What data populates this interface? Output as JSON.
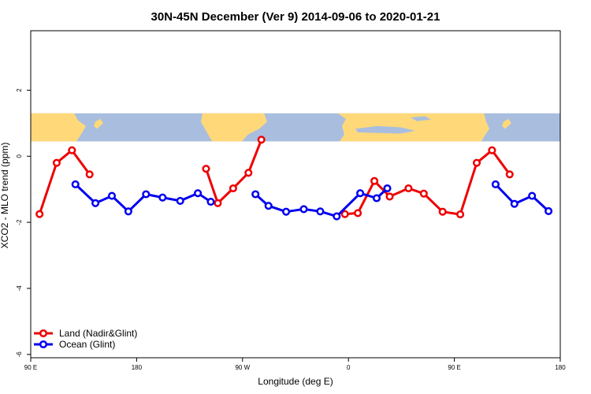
{
  "chart_data": {
    "type": "line",
    "title": "30N-45N December (Ver 9)   2014-09-06 to 2020-01-21",
    "xlabel": "Longitude (deg E)",
    "ylabel": "XCO2 - MLO trend (ppm)",
    "xlim": [
      90,
      540
    ],
    "ylim": [
      -6.1,
      3.8
    ],
    "x_ticks": [
      {
        "value": 90,
        "label": "90 E"
      },
      {
        "value": 180,
        "label": "180"
      },
      {
        "value": 270,
        "label": "90 W"
      },
      {
        "value": 360,
        "label": "0"
      },
      {
        "value": 450,
        "label": "90 E"
      },
      {
        "value": 540,
        "label": "180"
      }
    ],
    "y_ticks": [
      {
        "value": -6,
        "label": "-6"
      },
      {
        "value": -4,
        "label": "-4"
      },
      {
        "value": -2,
        "label": "-2"
      },
      {
        "value": 0,
        "label": "0"
      },
      {
        "value": 2,
        "label": "2"
      }
    ],
    "map_band": {
      "y_range": [
        0.45,
        1.3
      ],
      "land_color": "#ffd979",
      "ocean_color": "#a9bedf"
    },
    "grid": false,
    "legend_position": "bottom-left",
    "series": [
      {
        "name": "Land (Nadir&Glint)",
        "color": "#ee0000",
        "segments": [
          [
            [
              97.5,
              -1.75
            ],
            [
              112,
              -0.2
            ],
            [
              125,
              0.18
            ],
            [
              140,
              -0.55
            ]
          ],
          [
            [
              239,
              -0.38
            ],
            [
              249,
              -1.42
            ],
            [
              262,
              -0.97
            ],
            [
              275,
              -0.5
            ],
            [
              286,
              0.5
            ]
          ],
          [
            [
              357,
              -1.75
            ],
            [
              368,
              -1.72
            ],
            [
              382,
              -0.75
            ],
            [
              395,
              -1.22
            ],
            [
              411,
              -0.97
            ],
            [
              424,
              -1.13
            ],
            [
              440,
              -1.68
            ],
            [
              455,
              -1.76
            ],
            [
              469,
              -0.2
            ],
            [
              482,
              0.18
            ],
            [
              497,
              -0.55
            ]
          ]
        ]
      },
      {
        "name": "Ocean (Glint)",
        "color": "#0000ee",
        "segments": [
          [
            [
              128,
              -0.85
            ],
            [
              145,
              -1.42
            ],
            [
              159,
              -1.2
            ],
            [
              173,
              -1.67
            ],
            [
              188,
              -1.15
            ],
            [
              202,
              -1.25
            ],
            [
              217,
              -1.35
            ],
            [
              232,
              -1.12
            ],
            [
              243,
              -1.38
            ]
          ],
          [
            [
              281,
              -1.15
            ],
            [
              292,
              -1.5
            ],
            [
              307,
              -1.68
            ],
            [
              322,
              -1.6
            ],
            [
              336,
              -1.67
            ],
            [
              350,
              -1.82
            ],
            [
              370,
              -1.12
            ],
            [
              384,
              -1.27
            ],
            [
              393,
              -0.97
            ]
          ],
          [
            [
              485,
              -0.85
            ],
            [
              501,
              -1.44
            ],
            [
              516,
              -1.2
            ],
            [
              530,
              -1.66
            ]
          ]
        ]
      }
    ]
  }
}
